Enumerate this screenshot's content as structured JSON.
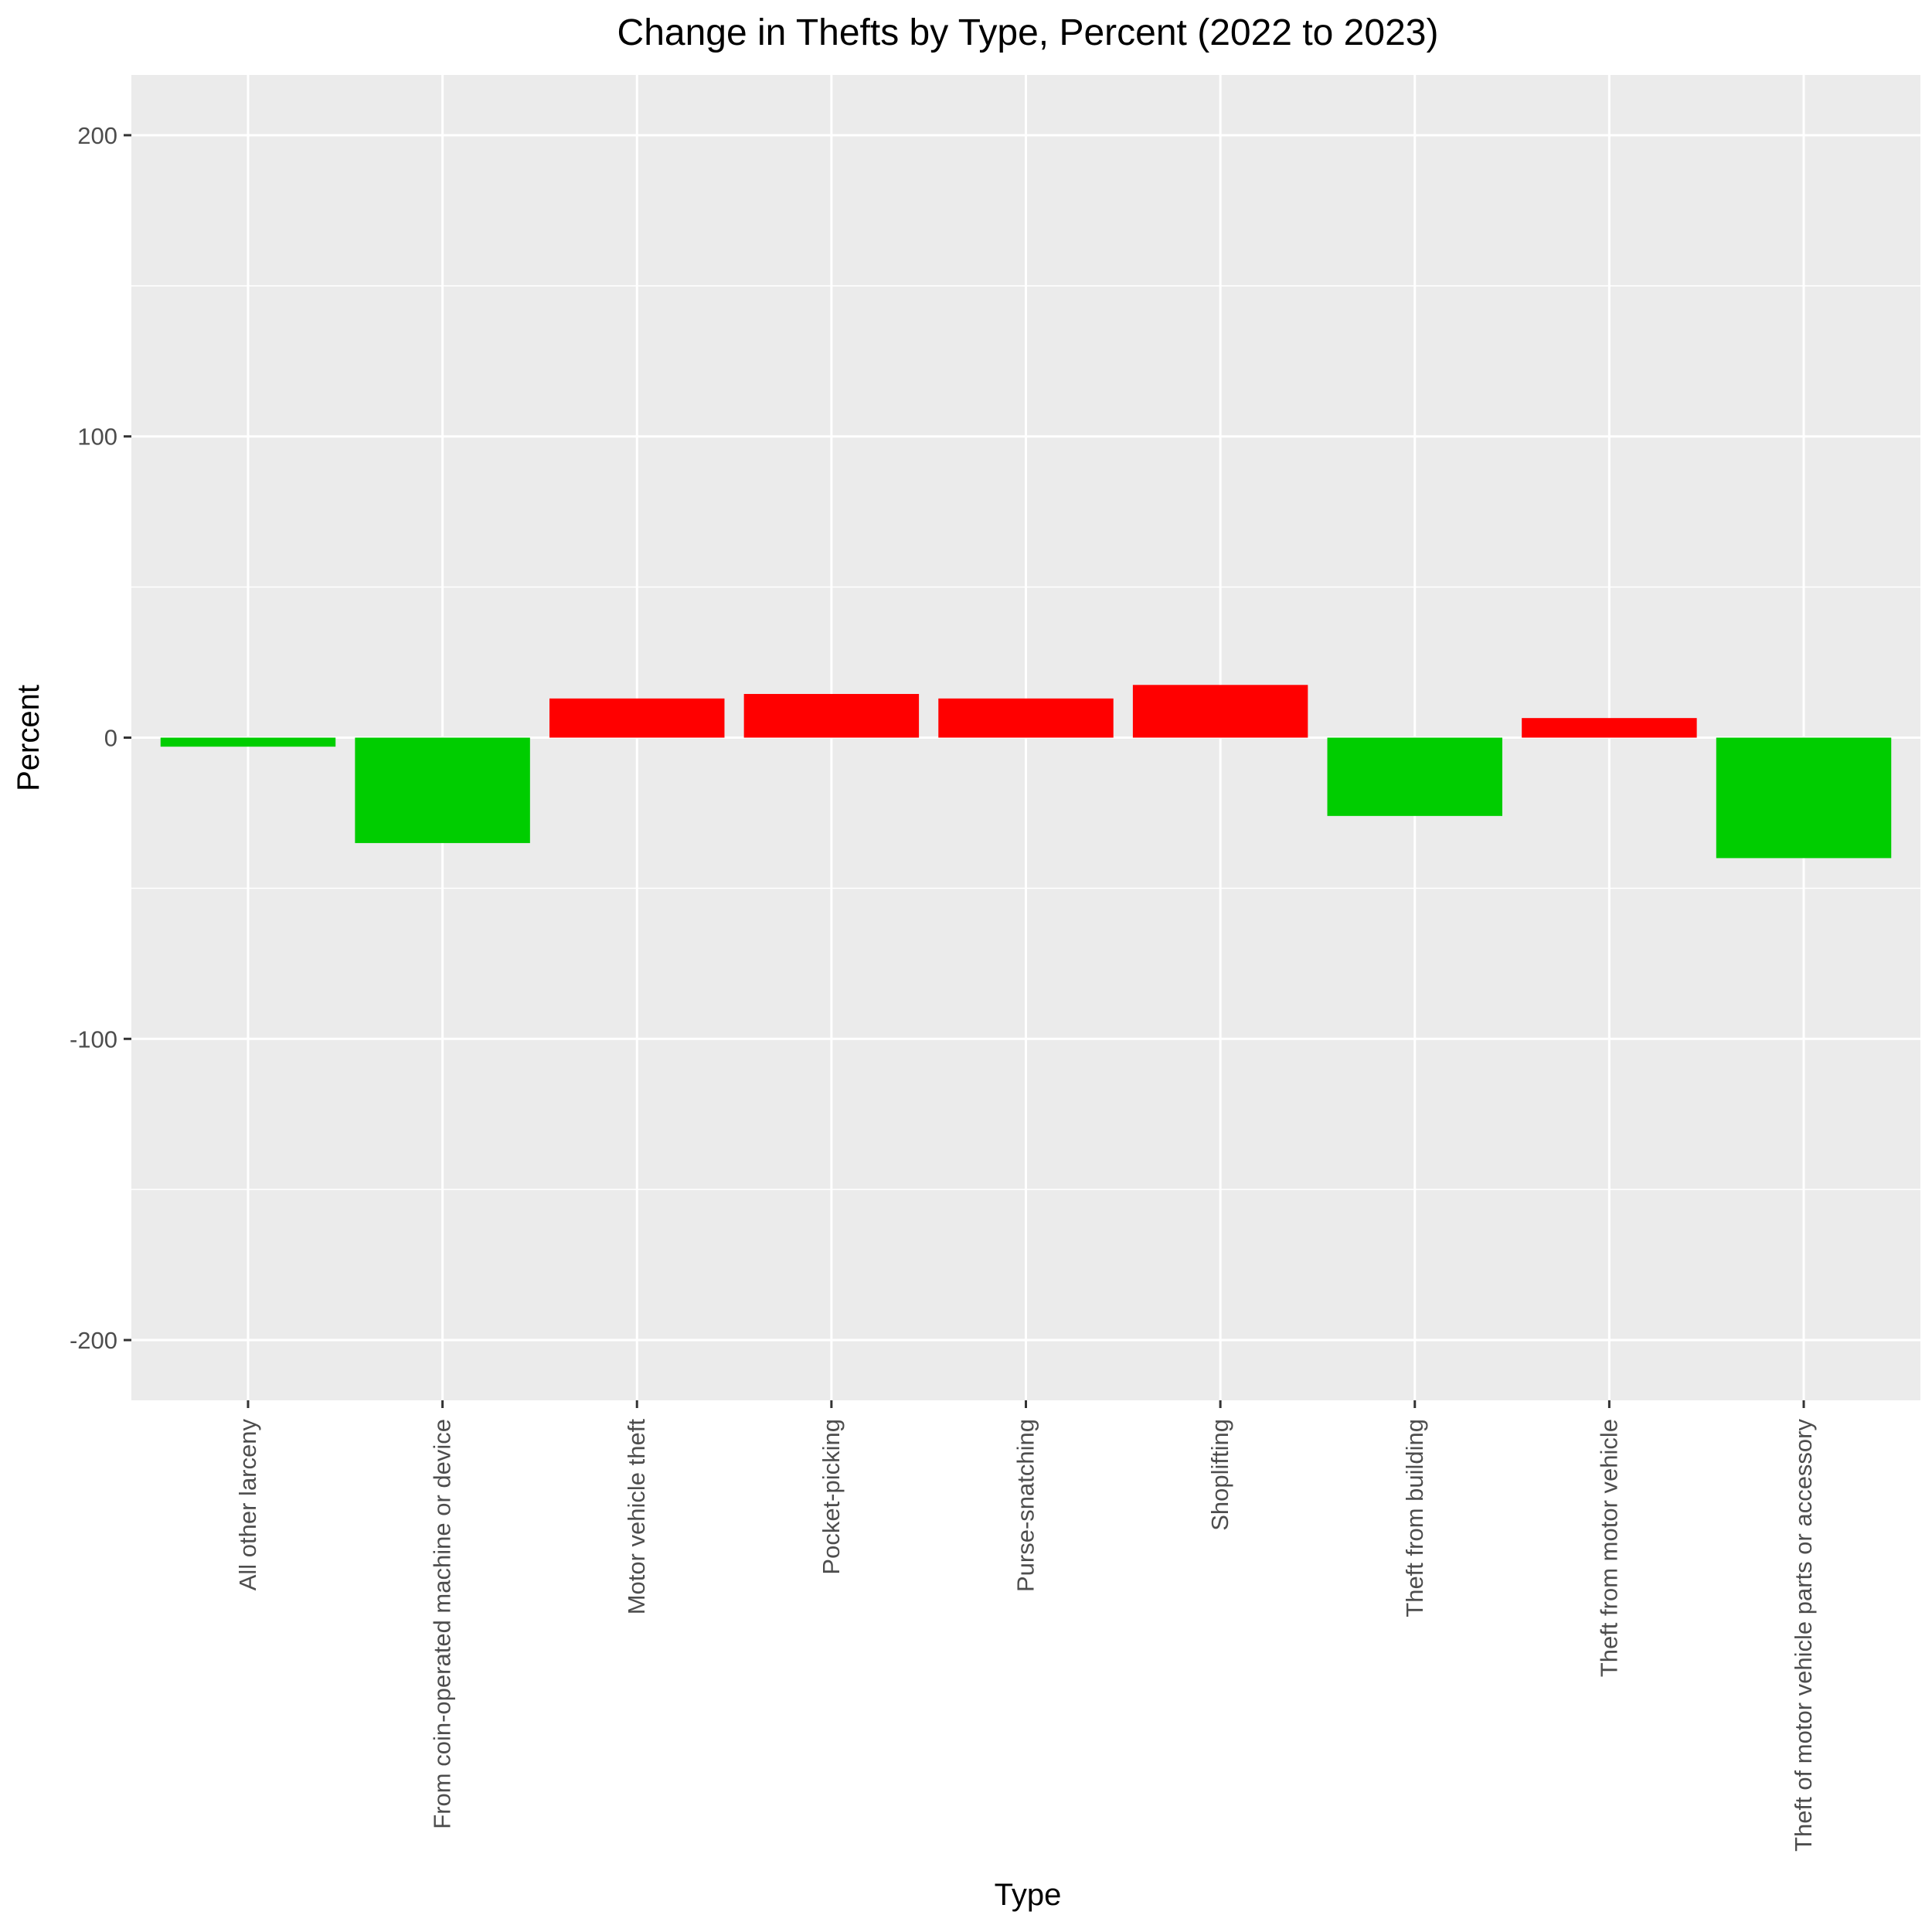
{
  "chart_data": {
    "type": "bar",
    "title": "Change in Thefts by Type, Percent (2022 to 2023)",
    "xlabel": "Type",
    "ylabel": "Percent",
    "ylim": [
      -220,
      220
    ],
    "yticks": [
      -200,
      -100,
      0,
      100,
      200
    ],
    "grid": true,
    "legend": "none",
    "categories": [
      "All other larceny",
      "From coin-operated machine or device",
      "Motor vehicle theft",
      "Pocket-picking",
      "Purse-snatching",
      "Shoplifting",
      "Theft from building",
      "Theft from motor vehicle",
      "Theft of motor vehicle parts or accessory"
    ],
    "values": [
      -3,
      -35,
      13,
      14.5,
      13,
      17.5,
      -26,
      6.5,
      -40
    ],
    "colors": {
      "increase": "#FF0000",
      "decrease": "#00CD00",
      "panel": "#EBEBEB",
      "grid": "#FFFFFF"
    }
  }
}
